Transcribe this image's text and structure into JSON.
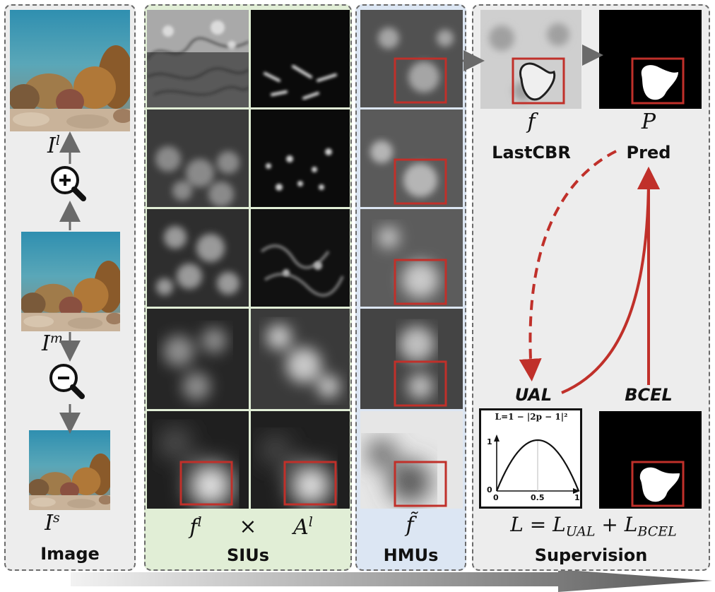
{
  "panels": {
    "image": {
      "title": "Image"
    },
    "siu": {
      "title": "SIUs"
    },
    "hmu": {
      "title": "HMUs"
    },
    "supervision": {
      "title": "Supervision"
    }
  },
  "image_labels": {
    "large": "I",
    "large_sup": "l",
    "medium": "I",
    "medium_sup": "m",
    "small": "I",
    "small_sup": "s"
  },
  "siu_labels": {
    "f": "f",
    "f_sup": "l",
    "times": "×",
    "a": "A",
    "a_sup": "l"
  },
  "hmu_labels": {
    "f_tilde": "f̃"
  },
  "supervision_labels": {
    "f": "f",
    "lastcbr": "LastCBR",
    "p": "P",
    "pred": "Pred",
    "ual": "UAL",
    "bcel": "BCEL",
    "loss_l": "L",
    "loss_eq": "=",
    "loss_l1": "L",
    "loss_sub1": "UAL",
    "loss_plus": "+",
    "loss_l2": "L",
    "loss_sub2": "BCEL"
  },
  "ual_chart": {
    "formula": "L=1 − |2p − 1|²",
    "ticks_x": [
      "0",
      "0.5",
      "1"
    ],
    "ticks_y": [
      "1",
      "0"
    ]
  },
  "colors": {
    "box_red": "#c0302a",
    "arrow_gray": "#707070",
    "panel_image": "#ededed",
    "panel_siu": "#e1eed6",
    "panel_hmu": "#dce6f3"
  },
  "icons": [
    "zoom-in-icon",
    "zoom-out-icon"
  ]
}
